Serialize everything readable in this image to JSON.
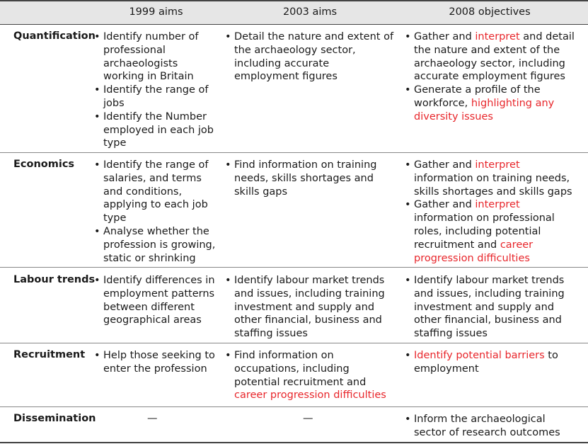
{
  "headers": {
    "c1": "1999 aims",
    "c2": "2003 aims",
    "c3": "2008 objectives"
  },
  "rows": {
    "quantification": {
      "label": "Quantification",
      "c1": [
        [
          {
            "t": "Identify number of professional archaeologists working in Britain"
          }
        ],
        [
          {
            "t": "Identify the range of jobs"
          }
        ],
        [
          {
            "t": "Identify the Number employed in each job type"
          }
        ]
      ],
      "c2": [
        [
          {
            "t": "Detail the nature and extent of the archaeology sector, including accurate employment figures"
          }
        ]
      ],
      "c3": [
        [
          {
            "t": "Gather and "
          },
          {
            "t": "interpret",
            "hl": true
          },
          {
            "t": " and detail the nature and extent of the archaeology sector, including accurate employment figures"
          }
        ],
        [
          {
            "t": "Generate a profile of the workforce, "
          },
          {
            "t": "highlighting any diversity issues",
            "hl": true
          }
        ]
      ]
    },
    "economics": {
      "label": "Economics",
      "c1": [
        [
          {
            "t": "Identify the range of salaries, and terms and conditions, applying to each job type"
          }
        ],
        [
          {
            "t": "Analyse whether the profession is growing, static or shrinking"
          }
        ]
      ],
      "c2": [
        [
          {
            "t": "Find information on training needs, skills shortages and skills gaps"
          }
        ]
      ],
      "c3": [
        [
          {
            "t": "Gather and "
          },
          {
            "t": "interpret",
            "hl": true
          },
          {
            "t": " information on training needs, skills shortages and skills gaps"
          }
        ],
        [
          {
            "t": "Gather and "
          },
          {
            "t": "interpret",
            "hl": true
          },
          {
            "t": " information on professional roles, including potential recruitment and "
          },
          {
            "t": "career progression difficulties",
            "hl": true
          }
        ]
      ]
    },
    "labour": {
      "label": "Labour trends",
      "c1": [
        [
          {
            "t": "Identify differences in employment patterns between different geographical areas"
          }
        ]
      ],
      "c2": [
        [
          {
            "t": "Identify labour market trends and issues, including training investment and supply and other financial, business and staffing issues"
          }
        ]
      ],
      "c3": [
        [
          {
            "t": "Identify labour market trends and issues, including training investment and supply and other financial, business and staffing issues"
          }
        ]
      ]
    },
    "recruitment": {
      "label": "Recruitment",
      "c1": [
        [
          {
            "t": "Help those seeking to enter the profession"
          }
        ]
      ],
      "c2": [
        [
          {
            "t": "Find information on occupations, including potential recruitment and "
          },
          {
            "t": "career progression difficulties",
            "hl": true
          }
        ]
      ],
      "c3": [
        [
          {
            "t": "Identify potential barriers",
            "hl": true
          },
          {
            "t": " to employment"
          }
        ]
      ]
    },
    "dissemination": {
      "label": "Dissemination",
      "c1_dash": "—",
      "c2_dash": "—",
      "c3": [
        [
          {
            "t": "Inform the archaeological sector of research outcomes"
          }
        ]
      ]
    }
  },
  "colors": {
    "highlight": "#e8262b",
    "header_bg": "#e6e6e6",
    "rule": "#444444"
  }
}
